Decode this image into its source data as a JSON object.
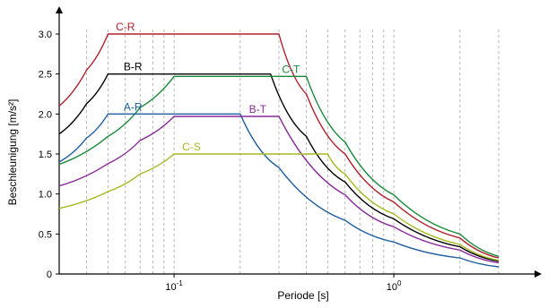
{
  "chart_data": {
    "type": "line",
    "xlabel": "Periode [s]",
    "ylabel": "Beschleunigung [m/s²]",
    "xscale": "log",
    "xlim": [
      0.03,
      3
    ],
    "ylim": [
      0,
      3.2
    ],
    "y_ticks": [
      "0",
      "0.5",
      "1.0",
      "1.5",
      "2.0",
      "2.5",
      "3.0"
    ],
    "x_tick_labels": [
      {
        "value": 0.1,
        "base": "10",
        "exp": "-1"
      },
      {
        "value": 1,
        "base": "10",
        "exp": "0"
      }
    ],
    "grid": "vertical dashed (log minor)",
    "series": [
      {
        "name": "C-R",
        "color": "#b0202a",
        "points": [
          [
            0.03,
            2.1
          ],
          [
            0.04,
            2.55
          ],
          [
            0.05,
            3.0
          ],
          [
            0.3,
            3.0
          ],
          [
            0.4,
            2.25
          ],
          [
            0.6,
            1.5
          ],
          [
            1.0,
            0.9
          ],
          [
            2.0,
            0.45
          ],
          [
            3.0,
            0.2
          ]
        ]
      },
      {
        "name": "B-R",
        "color": "#000000",
        "points": [
          [
            0.03,
            1.75
          ],
          [
            0.04,
            2.13
          ],
          [
            0.05,
            2.5
          ],
          [
            0.275,
            2.5
          ],
          [
            0.4,
            1.72
          ],
          [
            0.6,
            1.15
          ],
          [
            1.0,
            0.69
          ],
          [
            2.0,
            0.34
          ],
          [
            3.0,
            0.16
          ]
        ]
      },
      {
        "name": "C-T",
        "color": "#1a8a3a",
        "points": [
          [
            0.03,
            1.37
          ],
          [
            0.05,
            1.72
          ],
          [
            0.07,
            2.08
          ],
          [
            0.1,
            2.47
          ],
          [
            0.4,
            2.47
          ],
          [
            0.6,
            1.65
          ],
          [
            1.0,
            0.99
          ],
          [
            2.0,
            0.5
          ],
          [
            3.0,
            0.22
          ]
        ]
      },
      {
        "name": "A-R",
        "color": "#1f5fa0",
        "points": [
          [
            0.03,
            1.4
          ],
          [
            0.04,
            1.7
          ],
          [
            0.05,
            2.0
          ],
          [
            0.2,
            2.0
          ],
          [
            0.3,
            1.33
          ],
          [
            0.6,
            0.67
          ],
          [
            1.0,
            0.4
          ],
          [
            2.0,
            0.2
          ],
          [
            3.0,
            0.09
          ]
        ]
      },
      {
        "name": "B-T",
        "color": "#8a2a9a",
        "points": [
          [
            0.03,
            1.1
          ],
          [
            0.05,
            1.38
          ],
          [
            0.07,
            1.67
          ],
          [
            0.1,
            1.97
          ],
          [
            0.3,
            1.97
          ],
          [
            0.6,
            0.99
          ],
          [
            1.0,
            0.59
          ],
          [
            2.0,
            0.3
          ],
          [
            3.0,
            0.14
          ]
        ]
      },
      {
        "name": "C-S",
        "color": "#a8b820",
        "points": [
          [
            0.03,
            0.82
          ],
          [
            0.05,
            1.03
          ],
          [
            0.07,
            1.25
          ],
          [
            0.1,
            1.5
          ],
          [
            0.5,
            1.5
          ],
          [
            0.6,
            1.25
          ],
          [
            1.0,
            0.75
          ],
          [
            2.0,
            0.37
          ],
          [
            3.0,
            0.17
          ]
        ]
      }
    ]
  }
}
